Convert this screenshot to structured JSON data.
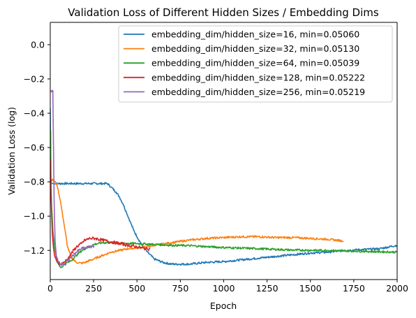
{
  "chart_data": {
    "type": "line",
    "title": "Validation Loss of Different Hidden Sizes / Embedding Dims",
    "xlabel": "Epoch",
    "ylabel": "Validation Loss (log)",
    "xlim": [
      0,
      2000
    ],
    "ylim": [
      -1.37,
      0.13
    ],
    "xticks": [
      0,
      250,
      500,
      750,
      1000,
      1250,
      1500,
      1750,
      2000
    ],
    "xtick_labels": [
      "0",
      "250",
      "500",
      "750",
      "1000",
      "1250",
      "1500",
      "1750",
      "2000"
    ],
    "yticks": [
      -1.2,
      -1.0,
      -0.8,
      -0.6,
      -0.4,
      -0.2,
      0.0
    ],
    "ytick_labels": [
      "−1.2",
      "−1.0",
      "−0.8",
      "−0.6",
      "−0.4",
      "−0.2",
      "0.0"
    ],
    "grid": false,
    "legend_position": "top-right",
    "series": [
      {
        "name": "embedding_dim/hidden_size=16, min=0.05060",
        "color": "#1f77b4",
        "x": [
          0,
          3,
          6,
          10,
          20,
          40,
          100,
          200,
          300,
          330,
          350,
          380,
          400,
          420,
          440,
          460,
          480,
          500,
          530,
          560,
          600,
          650,
          700,
          800,
          900,
          1000,
          1100,
          1200,
          1300,
          1400,
          1500,
          1600,
          1700,
          1800,
          1900,
          1950,
          2000
        ],
        "y": [
          -0.37,
          -0.81,
          -0.81,
          -0.81,
          -0.81,
          -0.81,
          -0.81,
          -0.81,
          -0.81,
          -0.81,
          -0.83,
          -0.86,
          -0.89,
          -0.93,
          -0.98,
          -1.03,
          -1.08,
          -1.12,
          -1.17,
          -1.21,
          -1.25,
          -1.27,
          -1.28,
          -1.28,
          -1.27,
          -1.265,
          -1.255,
          -1.245,
          -1.235,
          -1.225,
          -1.215,
          -1.21,
          -1.2,
          -1.195,
          -1.19,
          -1.18,
          -1.17
        ],
        "noise": 0.006
      },
      {
        "name": "embedding_dim/hidden_size=32, min=0.05130",
        "color": "#ff7f0e",
        "x": [
          0,
          3,
          6,
          10,
          20,
          40,
          60,
          80,
          100,
          120,
          150,
          180,
          200,
          250,
          300,
          350,
          400,
          450,
          500,
          550,
          600,
          700,
          800,
          900,
          1000,
          1100,
          1200,
          1300,
          1400,
          1500,
          1600,
          1690
        ],
        "y": [
          -0.79,
          -0.81,
          -0.8,
          -0.79,
          -0.79,
          -0.82,
          -0.92,
          -1.05,
          -1.18,
          -1.24,
          -1.27,
          -1.275,
          -1.27,
          -1.25,
          -1.23,
          -1.21,
          -1.2,
          -1.19,
          -1.185,
          -1.18,
          -1.17,
          -1.155,
          -1.14,
          -1.13,
          -1.125,
          -1.12,
          -1.12,
          -1.125,
          -1.125,
          -1.13,
          -1.135,
          -1.145
        ],
        "noise": 0.006
      },
      {
        "name": "embedding_dim/hidden_size=64, min=0.05039",
        "color": "#2ca02c",
        "x": [
          0,
          2,
          4,
          8,
          15,
          25,
          40,
          60,
          80,
          100,
          120,
          140,
          170,
          200,
          250,
          300,
          350,
          400,
          500,
          600,
          700,
          800,
          900,
          1000,
          1200,
          1400,
          1600,
          1800,
          2000
        ],
        "y": [
          -0.7,
          -0.5,
          -0.82,
          -0.95,
          -1.08,
          -1.18,
          -1.27,
          -1.3,
          -1.285,
          -1.27,
          -1.26,
          -1.24,
          -1.21,
          -1.19,
          -1.165,
          -1.155,
          -1.155,
          -1.158,
          -1.16,
          -1.165,
          -1.17,
          -1.172,
          -1.178,
          -1.183,
          -1.19,
          -1.198,
          -1.2,
          -1.205,
          -1.21
        ],
        "noise": 0.006
      },
      {
        "name": "embedding_dim/hidden_size=128, min=0.05222",
        "color": "#d62728",
        "x": [
          0,
          2,
          4,
          8,
          12,
          18,
          25,
          35,
          45,
          60,
          80,
          100,
          120,
          150,
          180,
          200,
          230,
          260,
          300,
          350,
          400,
          450,
          500,
          550,
          575
        ],
        "y": [
          -0.72,
          -0.67,
          -0.85,
          -1.0,
          -1.1,
          -1.18,
          -1.23,
          -1.26,
          -1.275,
          -1.28,
          -1.27,
          -1.25,
          -1.22,
          -1.18,
          -1.16,
          -1.14,
          -1.13,
          -1.13,
          -1.14,
          -1.15,
          -1.16,
          -1.17,
          -1.18,
          -1.19,
          -1.19
        ],
        "noise": 0.009
      },
      {
        "name": "embedding_dim/hidden_size=256, min=0.05219",
        "color": "#9467bd",
        "x": [
          0,
          5,
          10,
          15,
          22,
          28,
          35,
          45,
          55,
          65,
          80,
          100,
          120,
          150,
          180,
          200,
          230,
          255
        ],
        "y": [
          -0.27,
          -0.27,
          -0.27,
          -0.27,
          -0.9,
          -1.15,
          -1.23,
          -1.265,
          -1.275,
          -1.28,
          -1.28,
          -1.26,
          -1.24,
          -1.21,
          -1.19,
          -1.185,
          -1.18,
          -1.175
        ],
        "noise": 0.008
      }
    ]
  }
}
